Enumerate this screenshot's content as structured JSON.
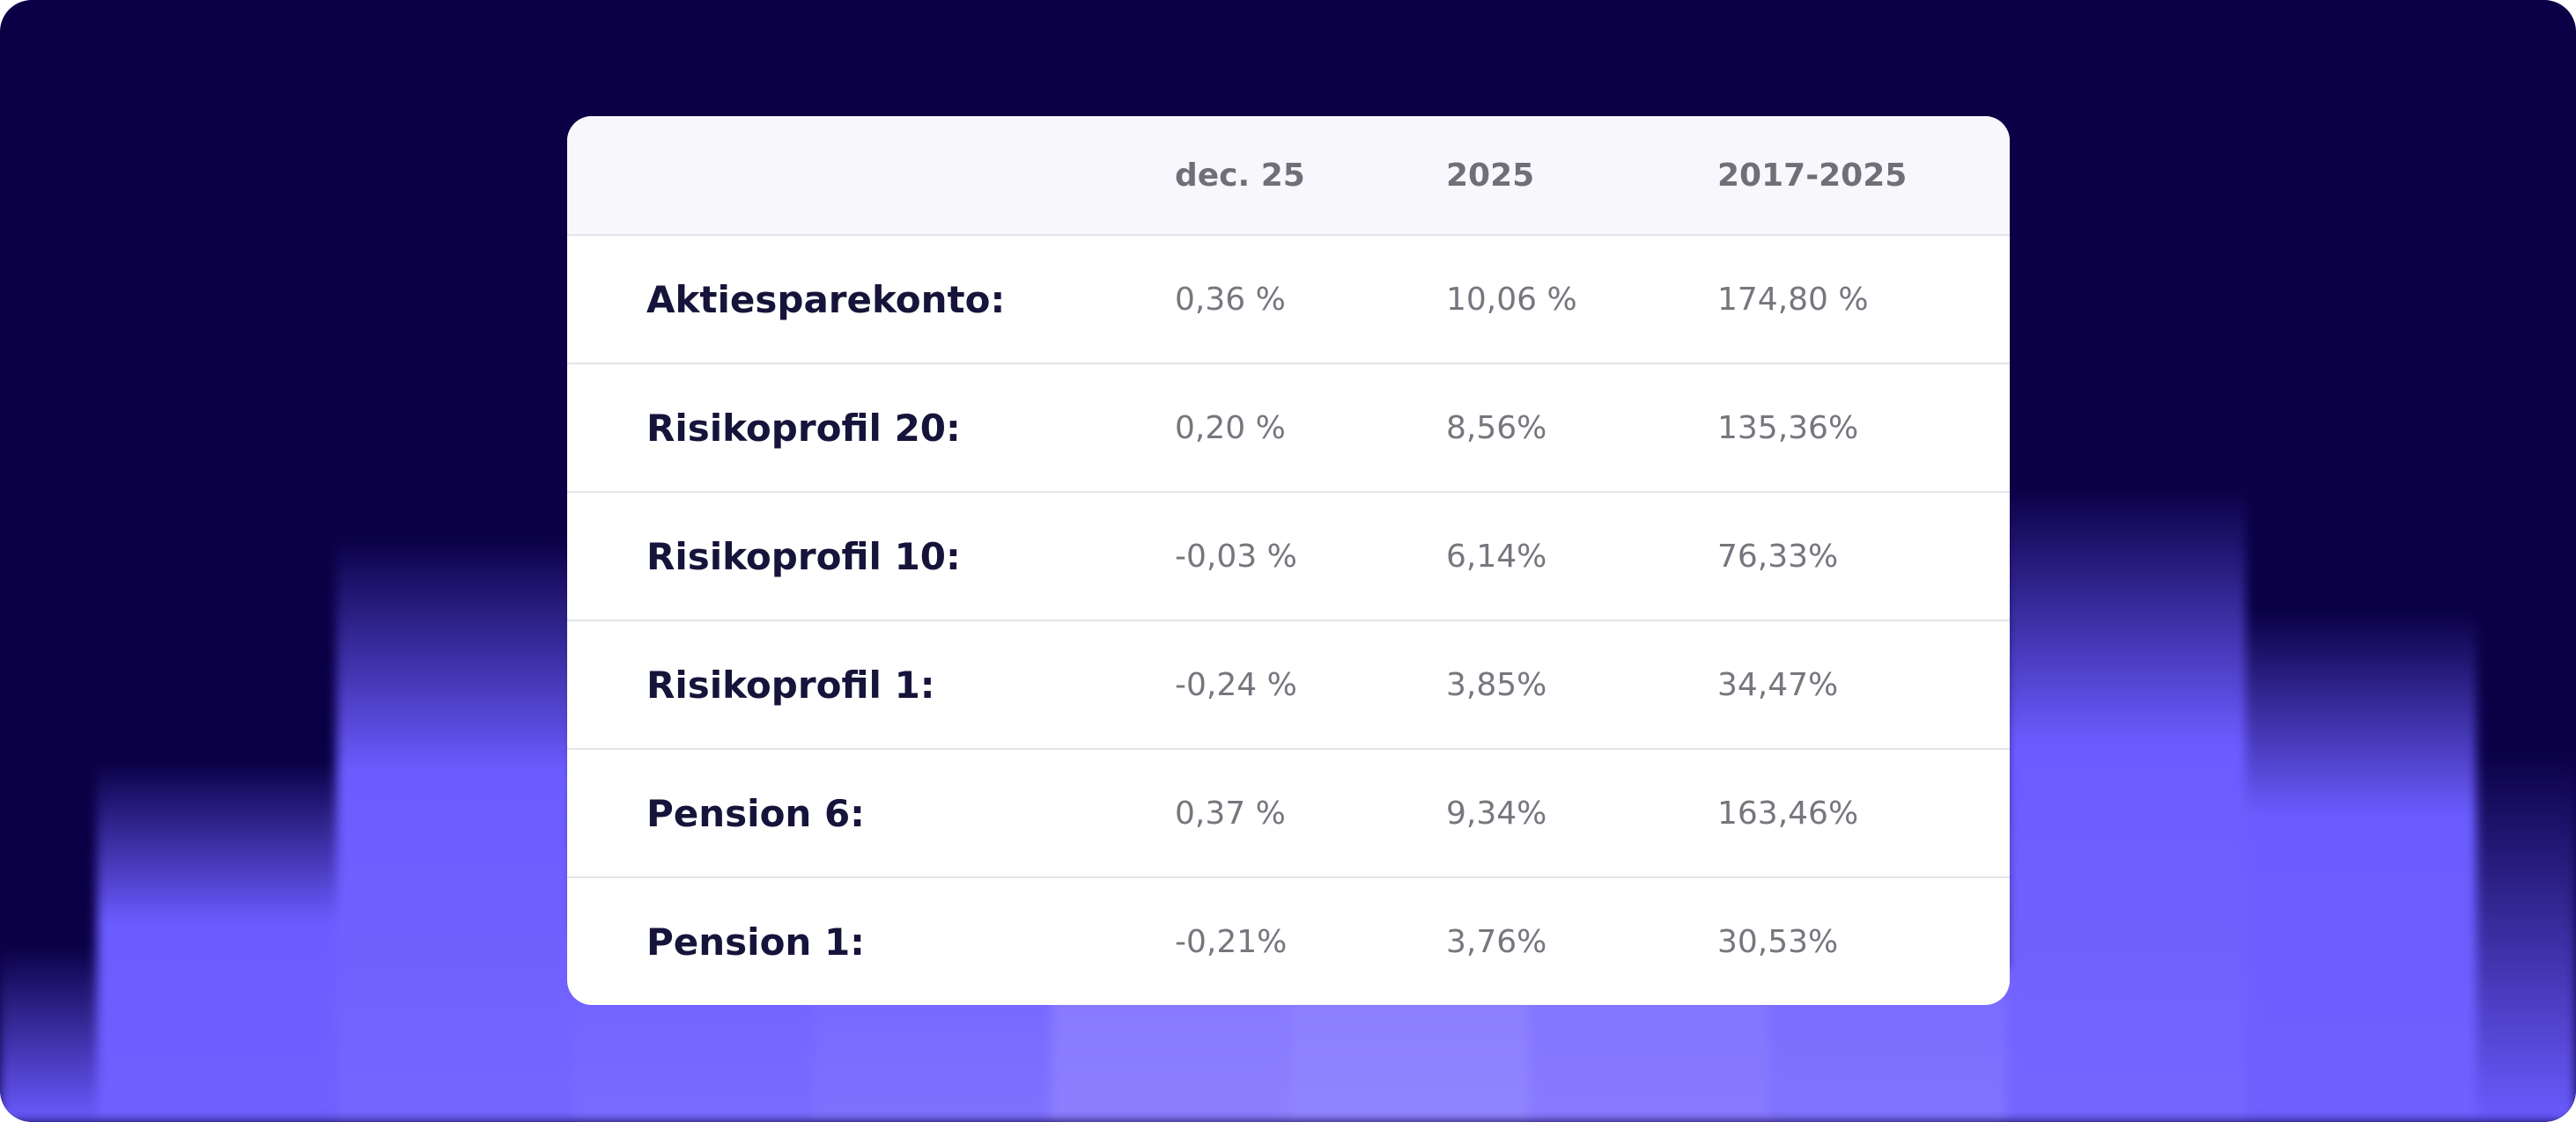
{
  "table": {
    "columns": [
      "dec. 25",
      "2025",
      "2017-2025"
    ],
    "rows": [
      {
        "label": "Aktiesparekonto:",
        "values": [
          "0,36 %",
          "10,06 %",
          "174,80 %"
        ]
      },
      {
        "label": "Risikoprofil 20:",
        "values": [
          "0,20 %",
          "8,56%",
          "135,36%"
        ]
      },
      {
        "label": "Risikoprofil 10:",
        "values": [
          "-0,03 %",
          "6,14%",
          "76,33%"
        ]
      },
      {
        "label": "Risikoprofil 1:",
        "values": [
          "-0,24 %",
          "3,85%",
          "34,47%"
        ]
      },
      {
        "label": "Pension 6:",
        "values": [
          "0,37 %",
          "9,34%",
          "163,46%"
        ]
      },
      {
        "label": "Pension 1:",
        "values": [
          "-0,21%",
          "3,76%",
          "30,53%"
        ]
      }
    ]
  },
  "colors": {
    "background": "#0b0046",
    "accent": "#6b5cff",
    "card": "#ffffff",
    "header_row": "#f7f7fc",
    "label_text": "#16143a",
    "value_text": "#76767e"
  }
}
